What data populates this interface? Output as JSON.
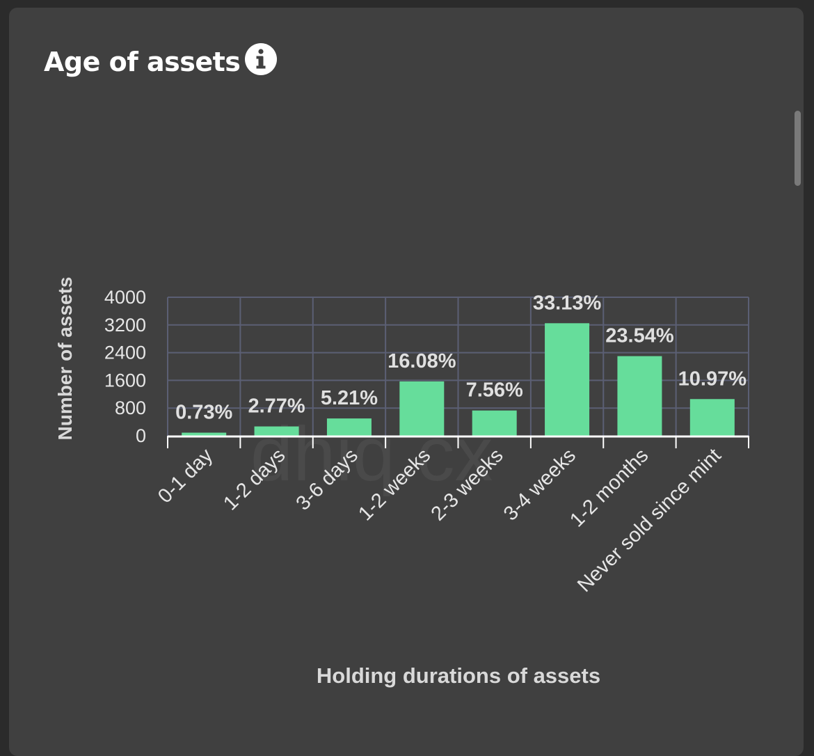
{
  "card": {
    "title": "Age of assets",
    "info_icon": "info-icon"
  },
  "colors": {
    "background": "#2b2b2b",
    "card": "#404040",
    "bar": "#66dd9b",
    "grid": "#5b5f74",
    "axis": "#ffffff"
  },
  "watermark": "dhiq.cx",
  "chart_data": {
    "type": "bar",
    "title": "",
    "xlabel": "Holding durations of assets",
    "ylabel": "Number of assets",
    "categories": [
      "0-1 day",
      "1-2 days",
      "3-6 days",
      "1-2 weeks",
      "2-3 weeks",
      "3-4 weeks",
      "1-2 months",
      "Never sold since mint"
    ],
    "values": [
      90,
      270,
      500,
      1570,
      730,
      3250,
      2300,
      1060
    ],
    "data_labels": [
      "0.73%",
      "2.77%",
      "5.21%",
      "16.08%",
      "7.56%",
      "33.13%",
      "23.54%",
      "10.97%"
    ],
    "yticks": [
      0,
      800,
      1600,
      2400,
      3200,
      4000
    ],
    "ylim": [
      0,
      4000
    ],
    "grid": true,
    "legend": "none"
  }
}
